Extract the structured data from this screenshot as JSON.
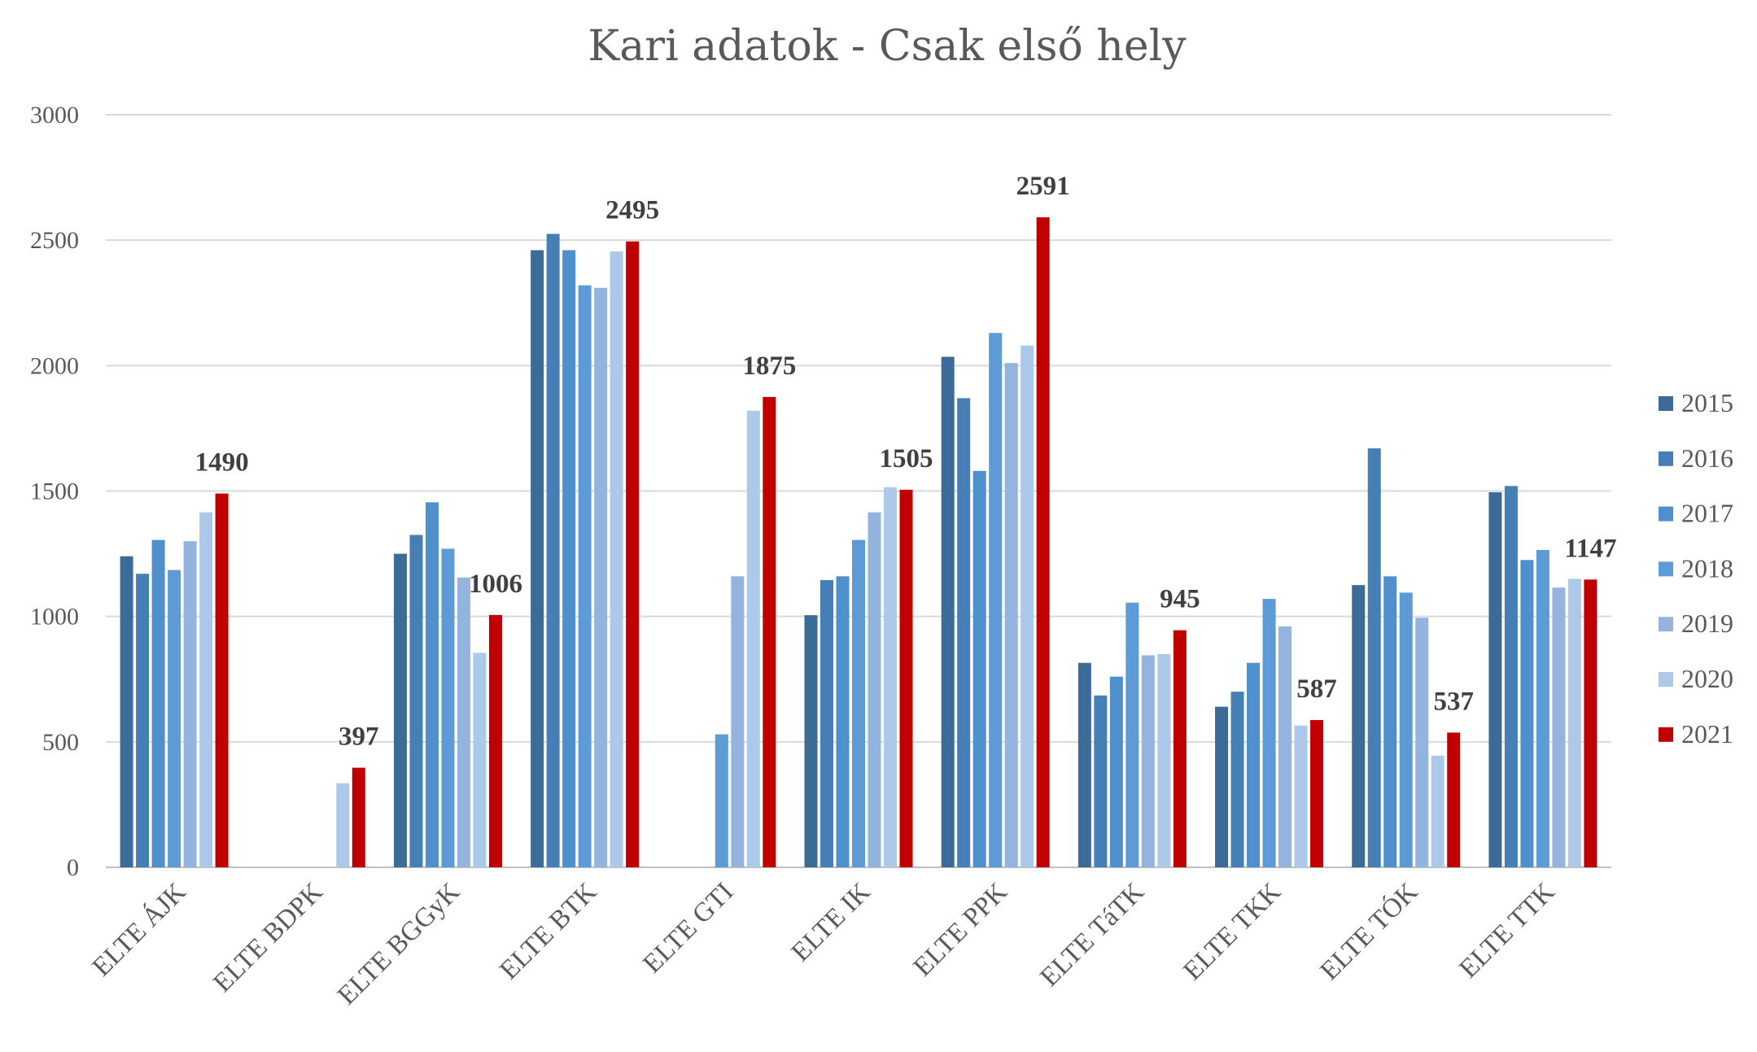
{
  "chart_data": {
    "type": "bar",
    "title": "Kari adatok - Csak első hely",
    "xlabel": "",
    "ylabel": "",
    "ylim": [
      0,
      3000
    ],
    "yticks": [
      "0",
      "500",
      "1000",
      "1500",
      "2000",
      "2500",
      "3000"
    ],
    "grid": true,
    "legend_position": "right",
    "categories": [
      "ELTE ÁJK",
      "ELTE BDPK",
      "ELTE BGGyK",
      "ELTE BTK",
      "ELTE GTI",
      "ELTE IK",
      "ELTE PPK",
      "ELTE TáTK",
      "ELTE TKK",
      "ELTE TÓK",
      "ELTE TTK"
    ],
    "series": [
      {
        "name": "2015",
        "color": "#3d6b97",
        "values": [
          1240,
          null,
          1250,
          2460,
          null,
          1005,
          2035,
          815,
          640,
          1125,
          1495
        ]
      },
      {
        "name": "2016",
        "color": "#467eb6",
        "values": [
          1170,
          null,
          1325,
          2525,
          null,
          1145,
          1870,
          685,
          700,
          1670,
          1520
        ]
      },
      {
        "name": "2017",
        "color": "#4f8fcb",
        "values": [
          1305,
          null,
          1455,
          2460,
          null,
          1160,
          1580,
          760,
          815,
          1160,
          1225
        ]
      },
      {
        "name": "2018",
        "color": "#5c9bd6",
        "values": [
          1185,
          null,
          1270,
          2320,
          530,
          1305,
          2130,
          1055,
          1070,
          1095,
          1265
        ]
      },
      {
        "name": "2019",
        "color": "#92b4de",
        "values": [
          1300,
          null,
          1155,
          2310,
          1160,
          1415,
          2010,
          845,
          960,
          995,
          1115
        ]
      },
      {
        "name": "2020",
        "color": "#adc9ea",
        "values": [
          1415,
          335,
          855,
          2455,
          1820,
          1515,
          2080,
          850,
          565,
          445,
          1150
        ]
      },
      {
        "name": "2021",
        "color": "#c00000",
        "values": [
          1490,
          397,
          1006,
          2495,
          1875,
          1505,
          2591,
          945,
          587,
          537,
          1147
        ]
      }
    ],
    "data_labels": [
      "1490",
      "397",
      "1006",
      "2495",
      "1875",
      "1505",
      "2591",
      "945",
      "587",
      "537",
      "1147"
    ]
  }
}
